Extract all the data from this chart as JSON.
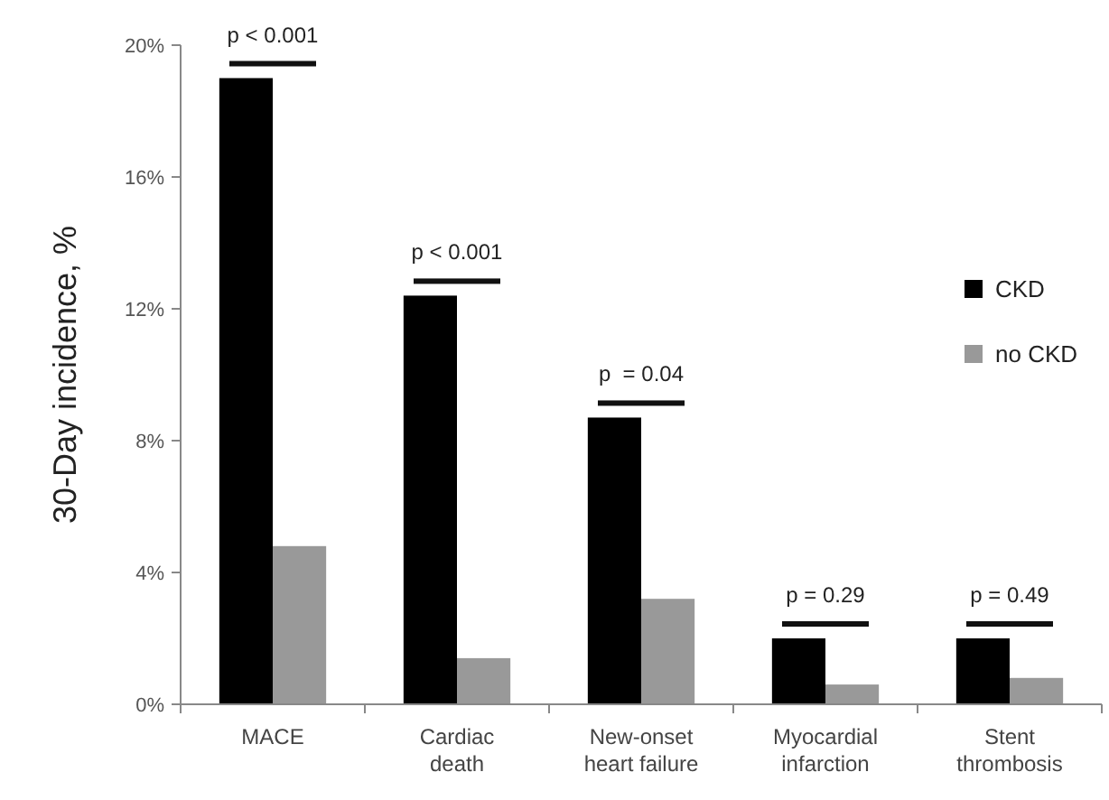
{
  "chart_data": {
    "type": "bar",
    "ylabel": "30-Day incidence, %",
    "categories": [
      "MACE",
      "Cardiac death",
      "New-onset heart failure",
      "Myocardial infarction",
      "Stent thrombosis"
    ],
    "series": [
      {
        "name": "CKD",
        "color": "#000000",
        "values": [
          19,
          12.4,
          8.7,
          2.0,
          2.0
        ]
      },
      {
        "name": "no CKD",
        "color": "#999999",
        "values": [
          4.8,
          1.4,
          3.2,
          0.6,
          0.8
        ]
      }
    ],
    "ylim": [
      0,
      20
    ],
    "yticks": [
      {
        "value": 0,
        "label": "0%"
      },
      {
        "value": 4,
        "label": "4%"
      },
      {
        "value": 8,
        "label": "8%"
      },
      {
        "value": 12,
        "label": "12%"
      },
      {
        "value": 16,
        "label": "16%"
      },
      {
        "value": 20,
        "label": "20%"
      }
    ],
    "annotations": [
      "p < 0.001",
      "p < 0.001",
      "p  = 0.04",
      "p = 0.29",
      "p = 0.49"
    ],
    "legend": "right",
    "grid": false
  }
}
